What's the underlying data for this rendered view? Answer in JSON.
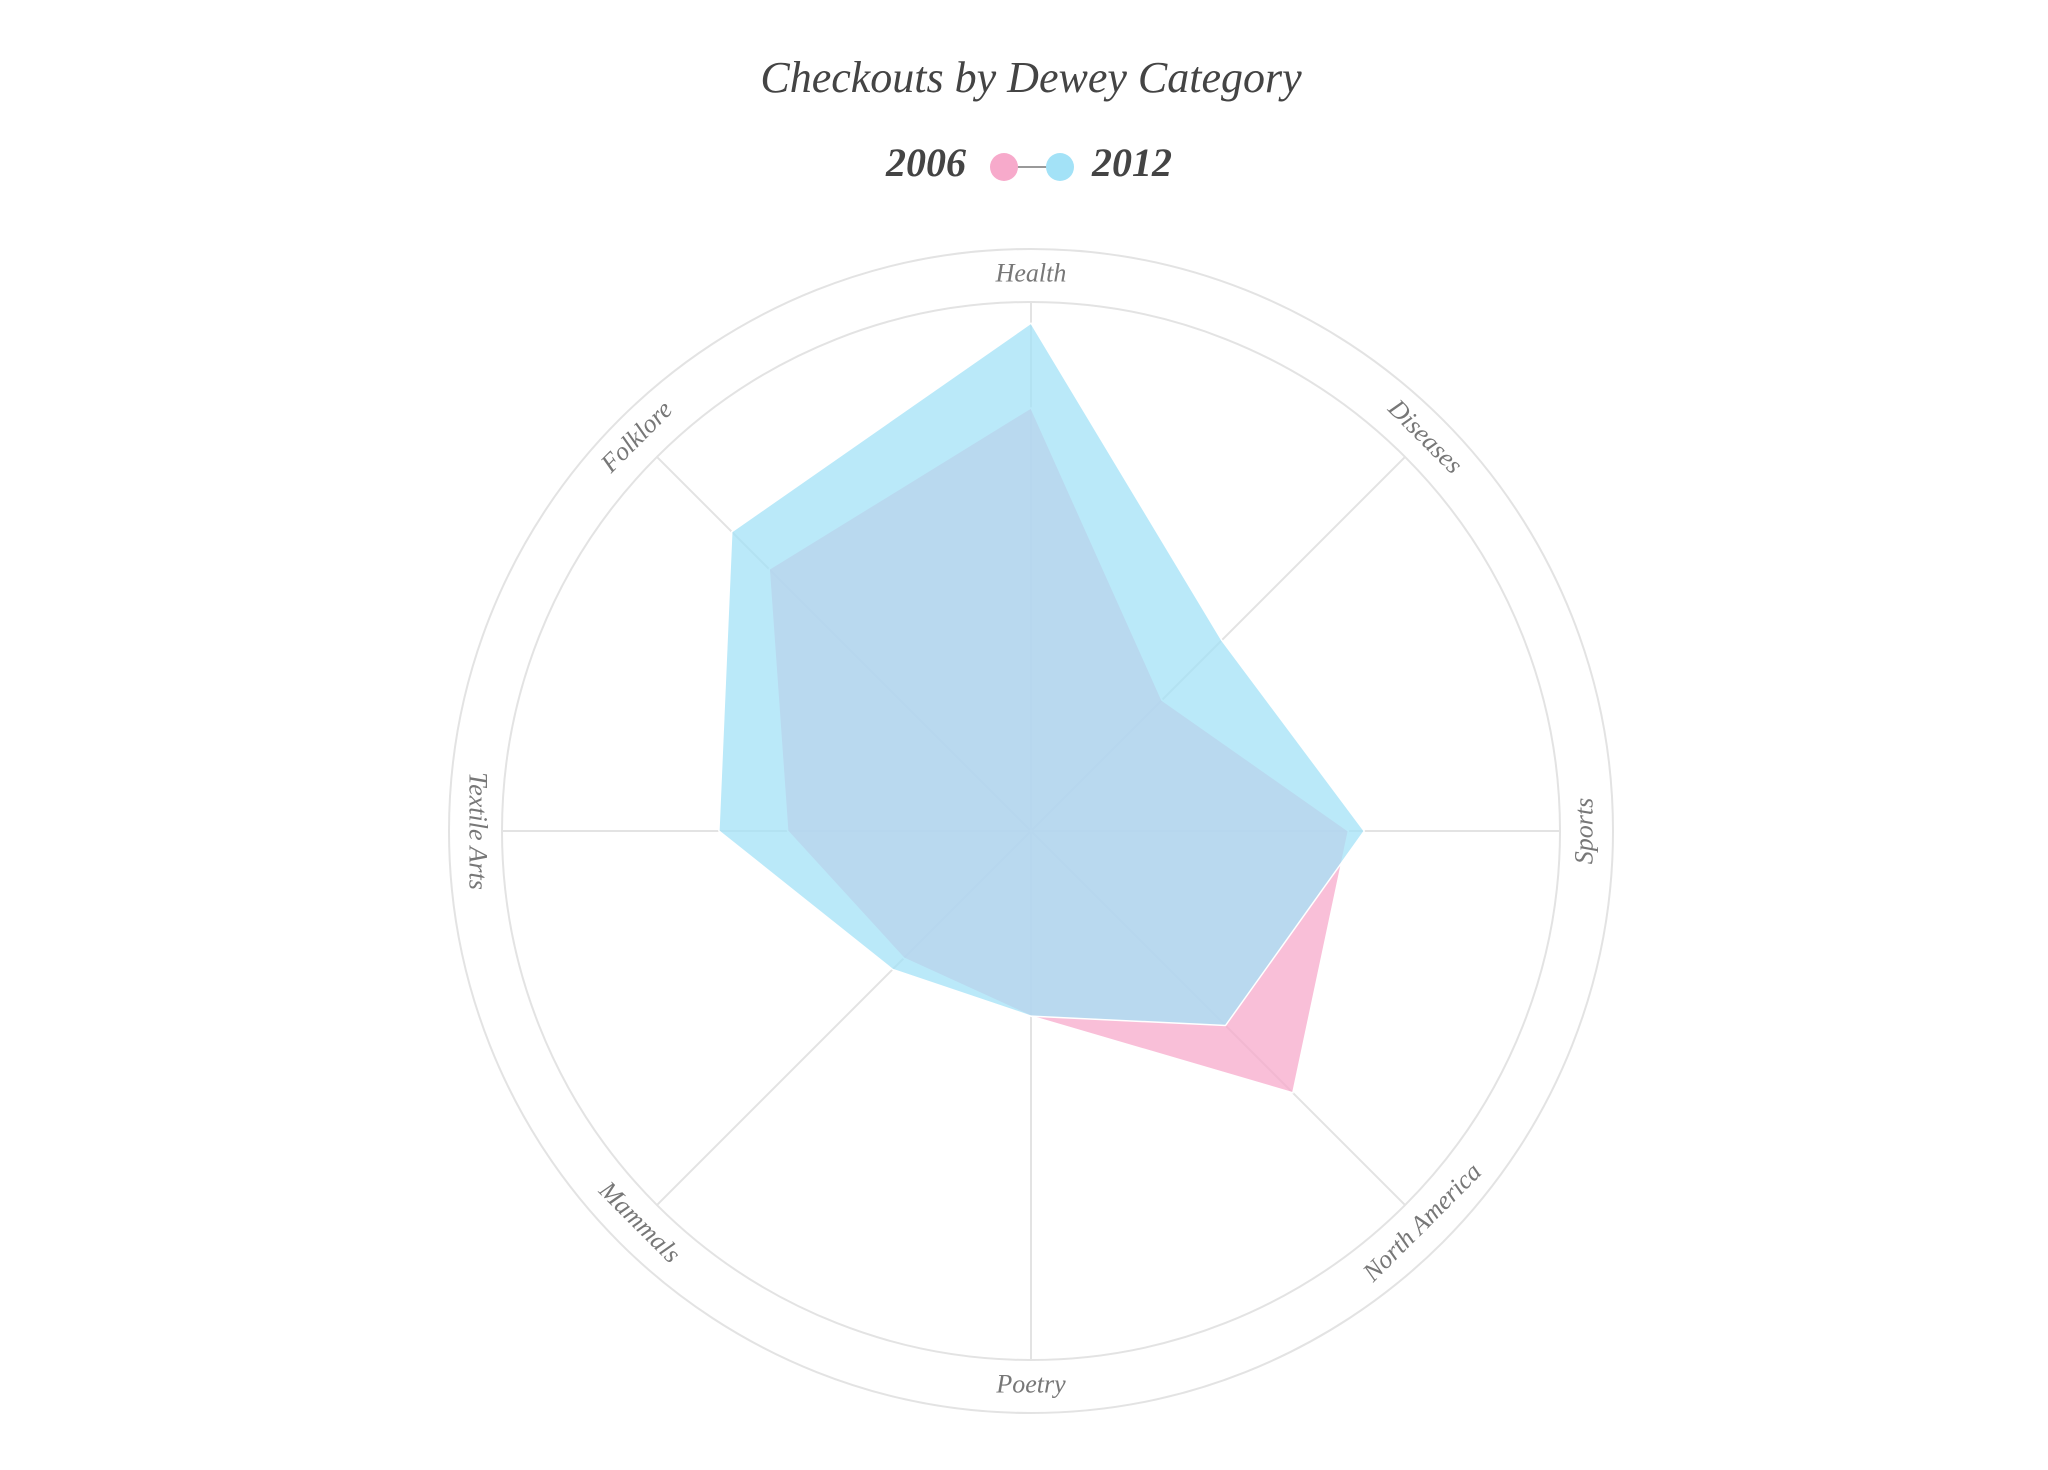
{
  "chart_data": {
    "type": "radar",
    "title": "Checkouts by Dewey Category",
    "categories": [
      "Health",
      "Diseases",
      "Sports",
      "North America",
      "Poetry",
      "Mammals",
      "Textile Arts",
      "Folklore"
    ],
    "series": [
      {
        "name": "2006",
        "color": "#f7aacb",
        "values": [
          80,
          35,
          60,
          70,
          35,
          34,
          46,
          70
        ]
      },
      {
        "name": "2012",
        "color": "#a3e2f7",
        "values": [
          96,
          51,
          63,
          52,
          35,
          37,
          59,
          80
        ]
      }
    ],
    "ylim": [
      0,
      100
    ],
    "grid": true
  }
}
